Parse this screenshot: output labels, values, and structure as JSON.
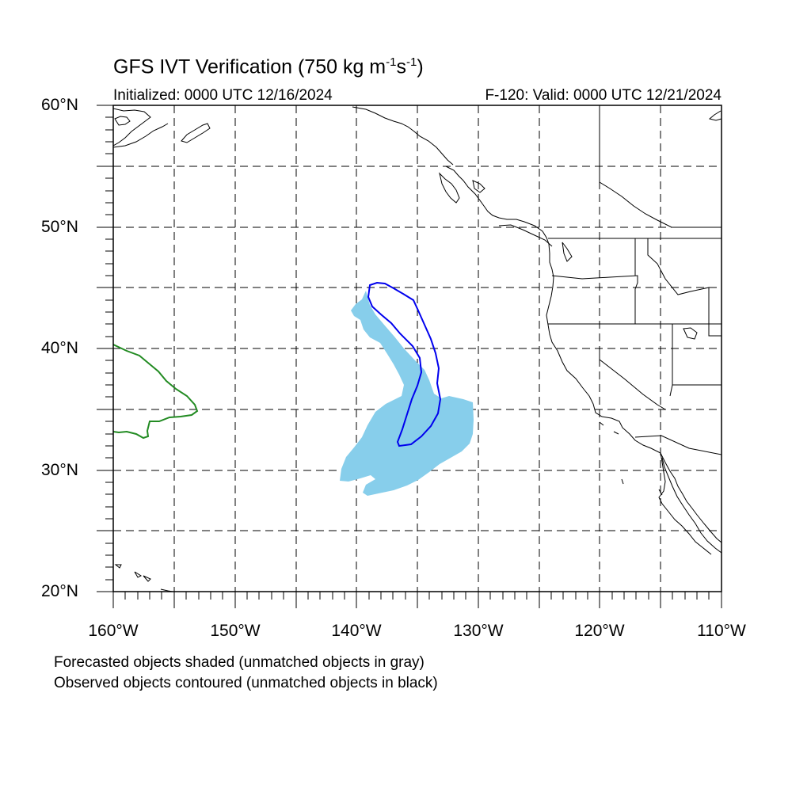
{
  "header": {
    "title_main": "GFS IVT Verification (750 kg m",
    "title_sup1": "-1",
    "title_mid": "s",
    "title_sup2": "-1",
    "title_end": ")",
    "initialized": "Initialized: 0000 UTC 12/16/2024",
    "valid": "F-120: Valid: 0000 UTC 12/21/2024"
  },
  "axes": {
    "lat_labels": [
      "60°N",
      "50°N",
      "40°N",
      "30°N",
      "20°N"
    ],
    "lon_labels": [
      "160°W",
      "150°W",
      "140°W",
      "130°W",
      "120°W",
      "110°W"
    ]
  },
  "map_extent": {
    "lon": [
      -160,
      -110
    ],
    "lat": [
      20,
      60
    ]
  },
  "footer": {
    "note1": "Forecasted objects shaded (unmatched objects in gray)",
    "note2": "Observed objects contoured (unmatched objects in black)"
  },
  "colors": {
    "forecast_fill": "#87ceeb",
    "observed_contour": "#0000ee",
    "green_contour": "#228b22",
    "coastline": "#000000"
  }
}
